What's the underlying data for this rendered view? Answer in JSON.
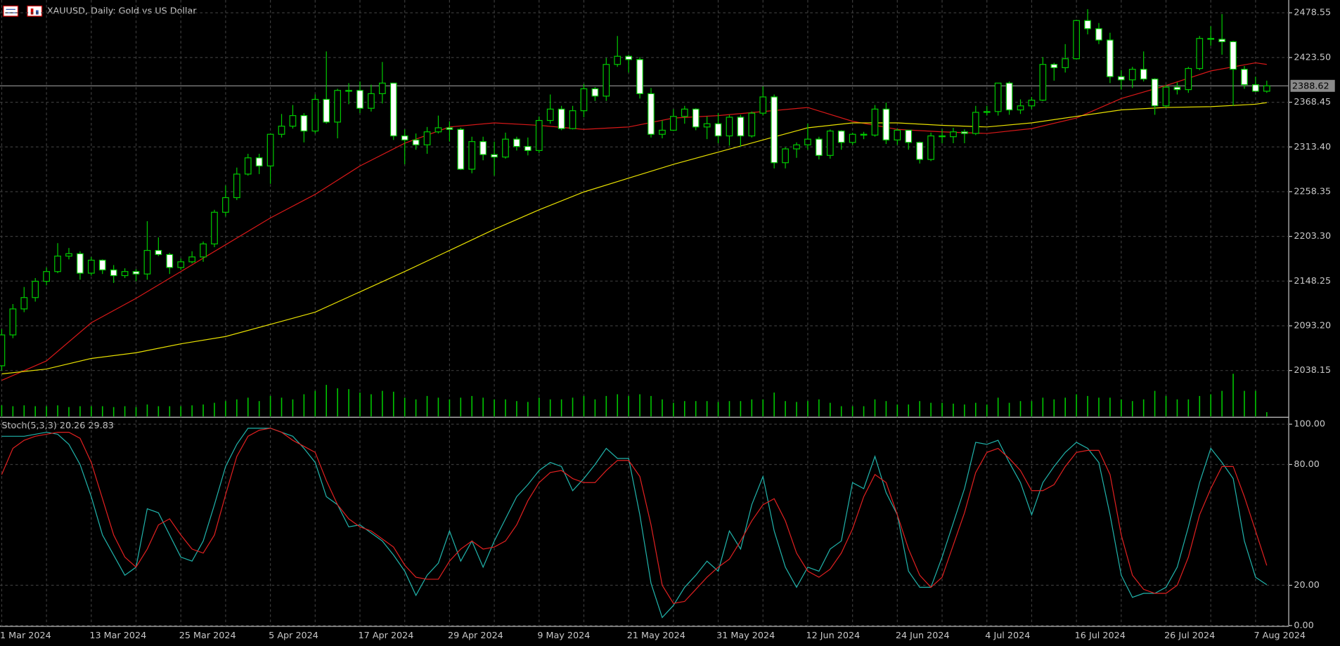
{
  "chart_data": {
    "type": "candlestick",
    "title": "XAUUSD, Daily:  Gold vs US Dollar",
    "categories": [
      "1 Mar 2024",
      null,
      null,
      null,
      null,
      null,
      null,
      null,
      "13 Mar 2024",
      null,
      null,
      null,
      null,
      null,
      null,
      null,
      "25 Mar 2024",
      null,
      null,
      null,
      null,
      null,
      null,
      null,
      "5 Apr 2024",
      null,
      null,
      null,
      null,
      null,
      null,
      null,
      "17 Apr 2024",
      null,
      null,
      null,
      null,
      null,
      null,
      null,
      "29 Apr 2024",
      null,
      null,
      null,
      null,
      null,
      null,
      null,
      "9 May 2024",
      null,
      null,
      null,
      null,
      null,
      null,
      null,
      "21 May 2024",
      null,
      null,
      null,
      null,
      null,
      null,
      null,
      "31 May 2024",
      null,
      null,
      null,
      null,
      null,
      null,
      null,
      "12 Jun 2024",
      null,
      null,
      null,
      null,
      null,
      null,
      null,
      "24 Jun 2024",
      null,
      null,
      null,
      null,
      null,
      null,
      null,
      "4 Jul 2024",
      null,
      null,
      null,
      null,
      null,
      null,
      null,
      "16 Jul 2024",
      null,
      null,
      null,
      null,
      null,
      null,
      null,
      "26 Jul 2024",
      null,
      null,
      null,
      null,
      null,
      null,
      null,
      "7 Aug 2024",
      null
    ],
    "open": [
      2044,
      2082,
      2114,
      2128,
      2148,
      2160,
      2179,
      2182,
      2158,
      2174,
      2162,
      2155,
      2160,
      2157,
      2186,
      2181,
      2165,
      2172,
      2178,
      2194,
      2233,
      2251,
      2280,
      2300,
      2290,
      2329,
      2339,
      2352,
      2333,
      2372,
      2344,
      2383,
      2383,
      2361,
      2379,
      2392,
      2327,
      2322,
      2316,
      2332,
      2337,
      2335,
      2286,
      2320,
      2304,
      2301,
      2323,
      2314,
      2309,
      2346,
      2360,
      2336,
      2358,
      2385,
      2376,
      2415,
      2425,
      2421,
      2379,
      2329,
      2334,
      2351,
      2360,
      2338,
      2342,
      2327,
      2350,
      2327,
      2355,
      2375,
      2294,
      2311,
      2316,
      2323,
      2303,
      2333,
      2319,
      2329,
      2328,
      2360,
      2322,
      2334,
      2319,
      2298,
      2327,
      2326,
      2332,
      2330,
      2356,
      2357,
      2392,
      2359,
      2364,
      2371,
      2415,
      2411,
      2422,
      2469,
      2459,
      2445,
      2400,
      2396,
      2409,
      2397,
      2364,
      2387,
      2384,
      2410,
      2447,
      2446,
      2443,
      2409,
      2390,
      2382
    ],
    "high": [
      2089,
      2120,
      2141,
      2152,
      2165,
      2195,
      2189,
      2185,
      2178,
      2175,
      2168,
      2164,
      2163,
      2222,
      2202,
      2183,
      2176,
      2185,
      2197,
      2236,
      2266,
      2288,
      2305,
      2305,
      2330,
      2354,
      2365,
      2355,
      2378,
      2431,
      2385,
      2392,
      2394,
      2390,
      2418,
      2392,
      2335,
      2330,
      2338,
      2352,
      2345,
      2337,
      2326,
      2326,
      2320,
      2331,
      2326,
      2325,
      2351,
      2378,
      2364,
      2364,
      2391,
      2387,
      2423,
      2450,
      2427,
      2424,
      2386,
      2346,
      2360,
      2364,
      2361,
      2351,
      2355,
      2353,
      2353,
      2357,
      2388,
      2378,
      2313,
      2319,
      2342,
      2326,
      2335,
      2334,
      2331,
      2332,
      2365,
      2368,
      2336,
      2334,
      2320,
      2331,
      2335,
      2337,
      2335,
      2364,
      2364,
      2392,
      2394,
      2372,
      2375,
      2424,
      2417,
      2440,
      2470,
      2483,
      2466,
      2454,
      2408,
      2412,
      2431,
      2398,
      2390,
      2393,
      2412,
      2450,
      2462,
      2477,
      2444,
      2413,
      2400,
      2395
    ],
    "low": [
      2038,
      2078,
      2110,
      2123,
      2143,
      2158,
      2175,
      2150,
      2155,
      2157,
      2146,
      2152,
      2148,
      2150,
      2179,
      2157,
      2162,
      2170,
      2172,
      2190,
      2228,
      2248,
      2278,
      2280,
      2268,
      2325,
      2336,
      2319,
      2330,
      2342,
      2324,
      2366,
      2355,
      2357,
      2367,
      2322,
      2292,
      2310,
      2305,
      2330,
      2320,
      2285,
      2281,
      2297,
      2278,
      2299,
      2309,
      2303,
      2306,
      2342,
      2334,
      2335,
      2350,
      2370,
      2370,
      2412,
      2405,
      2373,
      2325,
      2324,
      2333,
      2342,
      2334,
      2323,
      2318,
      2315,
      2314,
      2325,
      2352,
      2287,
      2287,
      2300,
      2310,
      2298,
      2299,
      2310,
      2316,
      2323,
      2326,
      2317,
      2316,
      2310,
      2293,
      2296,
      2318,
      2318,
      2318,
      2328,
      2352,
      2352,
      2353,
      2354,
      2360,
      2370,
      2395,
      2405,
      2421,
      2452,
      2440,
      2392,
      2384,
      2386,
      2394,
      2353,
      2362,
      2378,
      2380,
      2408,
      2438,
      2427,
      2364,
      2385,
      2381,
      2380
    ],
    "close": [
      2082,
      2114,
      2128,
      2148,
      2160,
      2179,
      2182,
      2158,
      2174,
      2162,
      2155,
      2160,
      2157,
      2186,
      2181,
      2165,
      2172,
      2178,
      2194,
      2233,
      2251,
      2280,
      2300,
      2290,
      2329,
      2339,
      2352,
      2333,
      2372,
      2344,
      2383,
      2383,
      2361,
      2379,
      2392,
      2327,
      2322,
      2316,
      2332,
      2337,
      2335,
      2286,
      2320,
      2304,
      2301,
      2323,
      2314,
      2309,
      2346,
      2360,
      2336,
      2358,
      2385,
      2376,
      2415,
      2425,
      2421,
      2379,
      2329,
      2334,
      2351,
      2360,
      2338,
      2342,
      2327,
      2350,
      2327,
      2355,
      2375,
      2294,
      2311,
      2316,
      2323,
      2303,
      2333,
      2319,
      2329,
      2328,
      2360,
      2322,
      2334,
      2319,
      2298,
      2327,
      2326,
      2332,
      2330,
      2356,
      2357,
      2392,
      2359,
      2364,
      2371,
      2415,
      2411,
      2422,
      2469,
      2459,
      2445,
      2400,
      2396,
      2409,
      2397,
      2364,
      2387,
      2384,
      2410,
      2447,
      2446,
      2443,
      2409,
      2390,
      2382,
      2388.62
    ],
    "volume": [
      13,
      12,
      13,
      12,
      12,
      13,
      11,
      12,
      12,
      12,
      11,
      12,
      11,
      14,
      12,
      12,
      12,
      13,
      14,
      16,
      18,
      20,
      22,
      18,
      24,
      22,
      20,
      26,
      30,
      37,
      33,
      32,
      28,
      26,
      30,
      29,
      22,
      20,
      24,
      22,
      20,
      22,
      24,
      22,
      20,
      20,
      18,
      17,
      22,
      20,
      20,
      22,
      24,
      20,
      24,
      26,
      24,
      26,
      24,
      20,
      16,
      18,
      18,
      18,
      17,
      18,
      18,
      20,
      20,
      28,
      18,
      17,
      18,
      20,
      16,
      12,
      12,
      12,
      20,
      18,
      14,
      14,
      18,
      16,
      16,
      15,
      14,
      16,
      14,
      22,
      16,
      18,
      18,
      22,
      20,
      22,
      26,
      24,
      22,
      22,
      20,
      18,
      20,
      30,
      24,
      20,
      20,
      24,
      26,
      30,
      50,
      30,
      30,
      5
    ],
    "bull_color": "#00c800",
    "bear_color": "#ffffff",
    "volume_color": "#00c800",
    "ylim": [
      1981.62,
      2494.31
    ],
    "yticks": [
      2478.55,
      {
        "value": 2423.5,
        "label": "2423.50"
      },
      2368.45,
      {
        "value": 2313.4,
        "label": "2313.40"
      },
      2258.35,
      {
        "value": 2203.3,
        "label": "2203.30"
      },
      2148.25,
      {
        "value": 2093.2,
        "label": "2093.20"
      },
      2038.15
    ],
    "current_price": 2388.62,
    "grid": true,
    "overlays": [
      {
        "color": "#d81818",
        "x": [
          0,
          4,
          8,
          12,
          16,
          20,
          24,
          28,
          32,
          36,
          40,
          44,
          48,
          52,
          56,
          60,
          64,
          68,
          72,
          76,
          80,
          84,
          88,
          92,
          96,
          100,
          104,
          108,
          112,
          113
        ],
        "values": [
          2026,
          2050,
          2097,
          2127,
          2160,
          2193,
          2226,
          2255,
          2290,
          2318,
          2338,
          2343,
          2340,
          2335,
          2338,
          2349,
          2352,
          2357,
          2362,
          2345,
          2335,
          2332,
          2330,
          2336,
          2349,
          2373,
          2389,
          2407,
          2417,
          2415
        ]
      },
      {
        "color": "#e8e000",
        "x": [
          0,
          4,
          8,
          12,
          16,
          20,
          24,
          28,
          32,
          36,
          40,
          44,
          48,
          52,
          56,
          60,
          64,
          68,
          72,
          76,
          80,
          84,
          88,
          92,
          96,
          100,
          104,
          108,
          112,
          113
        ],
        "values": [
          2034,
          2040,
          2053,
          2060,
          2071,
          2080,
          2095,
          2110,
          2135,
          2160,
          2186,
          2212,
          2236,
          2258,
          2275,
          2292,
          2307,
          2322,
          2337,
          2343,
          2343,
          2340,
          2338,
          2343,
          2351,
          2359,
          2362,
          2363,
          2366,
          2368
        ]
      }
    ],
    "stochastic": {
      "label": "Stoch(5,3,3) 20.26 29.83",
      "ylim": [
        -0.4,
        103
      ],
      "yticks": [
        {
          "value": 100,
          "label": "100.00"
        },
        {
          "value": 80,
          "label": "80.00"
        },
        {
          "value": 20,
          "label": "20.00"
        },
        {
          "value": 0,
          "label": "0.00"
        }
      ],
      "series": [
        {
          "color": "#20b2aa",
          "values": [
            94,
            94,
            94,
            95,
            96,
            95,
            90,
            80,
            64,
            45,
            35,
            25,
            29,
            58,
            56,
            45,
            34,
            32,
            42,
            60,
            79,
            90,
            98,
            98,
            98,
            96,
            94,
            88,
            81,
            64,
            60,
            49,
            50,
            46,
            42,
            35,
            27,
            15,
            25,
            31,
            47,
            32,
            42,
            29,
            42,
            53,
            64,
            70,
            77,
            81,
            79,
            67,
            73,
            80,
            88,
            83,
            83,
            55,
            21,
            4,
            10,
            19,
            25,
            32,
            27,
            47,
            38,
            60,
            74,
            47,
            29,
            19,
            29,
            27,
            38,
            42,
            71,
            68,
            84,
            66,
            55,
            27,
            19,
            19,
            34,
            51,
            68,
            91,
            90,
            92,
            81,
            71,
            55,
            71,
            79,
            86,
            91,
            88,
            81,
            55,
            25,
            14,
            16,
            16,
            19,
            29,
            49,
            71,
            88,
            81,
            73,
            42,
            24,
            20.26
          ]
        },
        {
          "color": "#e02020",
          "values": [
            75,
            88,
            92,
            94,
            95,
            96,
            96,
            93,
            81,
            63,
            45,
            34,
            29,
            38,
            50,
            53,
            45,
            38,
            36,
            45,
            65,
            84,
            94,
            97,
            98,
            96,
            92,
            89,
            86,
            72,
            60,
            53,
            49,
            47,
            43,
            39,
            30,
            24,
            23,
            23,
            32,
            38,
            42,
            38,
            39,
            42,
            50,
            62,
            71,
            76,
            77,
            73,
            71,
            71,
            77,
            82,
            82,
            74,
            50,
            20,
            11,
            12,
            18,
            24,
            29,
            33,
            42,
            52,
            60,
            63,
            52,
            36,
            27,
            24,
            28,
            36,
            48,
            64,
            75,
            71,
            55,
            38,
            25,
            19,
            24,
            40,
            56,
            76,
            86,
            88,
            83,
            77,
            67,
            67,
            70,
            79,
            86,
            87,
            87,
            75,
            45,
            25,
            18,
            16,
            16,
            20,
            34,
            55,
            68,
            79,
            79,
            64,
            47,
            29.83
          ]
        }
      ]
    }
  }
}
